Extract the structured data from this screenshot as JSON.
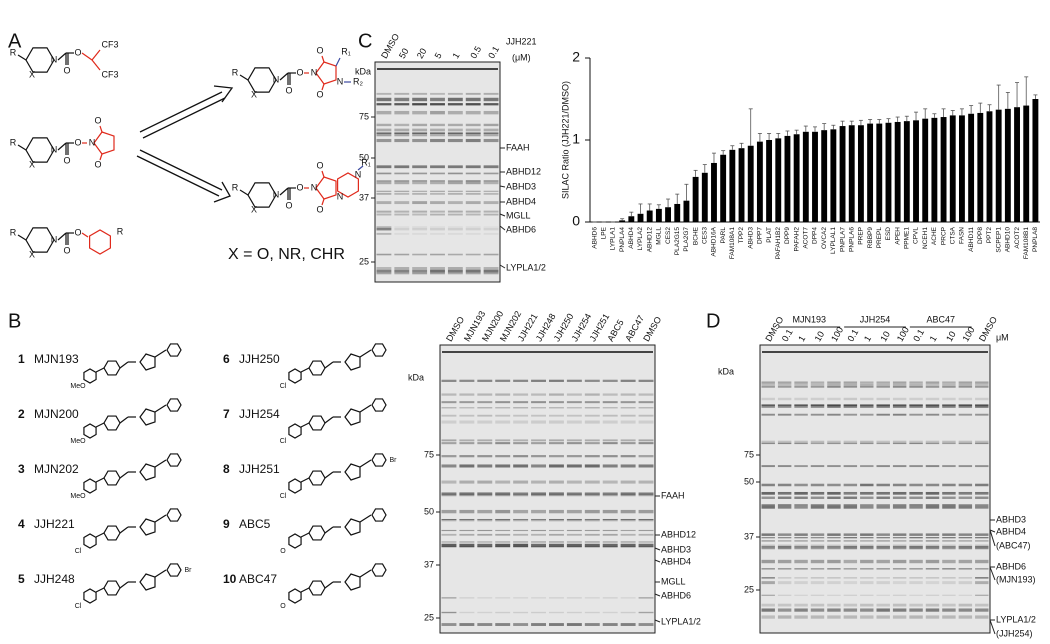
{
  "panel_a": {
    "letter": "A",
    "structures": [
      {
        "labels": [
          "R",
          "X",
          "N",
          "O",
          "O",
          "CF3",
          "CF3"
        ]
      },
      {
        "labels": [
          "R",
          "X",
          "N",
          "O",
          "O",
          "N",
          "O",
          "O"
        ]
      },
      {
        "labels": [
          "R",
          "X",
          "N",
          "O",
          "O",
          "R"
        ]
      },
      {
        "labels": [
          "R",
          "X",
          "N",
          "O",
          "O",
          "N",
          "O",
          "O",
          "N",
          "R₁",
          "R₂"
        ]
      },
      {
        "labels": [
          "R",
          "X",
          "N",
          "O",
          "O",
          "N",
          "O",
          "O",
          "N",
          "N",
          "R₁"
        ]
      }
    ],
    "note": "X = O, NR, CHR"
  },
  "panel_c": {
    "letter": "C",
    "lane_labels": [
      "DMSO",
      50,
      20,
      5,
      1,
      0.5,
      0.1
    ],
    "compound": "JJH221",
    "unit": "(μM)",
    "kda_label": "kDa",
    "markers": [
      75,
      50,
      37,
      25
    ],
    "band_labels": [
      "FAAH",
      "ABHD12",
      "ABHD3",
      "ABHD4",
      "MGLL",
      "ABHD6",
      "LYPLA1/2"
    ]
  },
  "chart_data": {
    "type": "bar",
    "y_label": "SILAC Ratio (JJH221/DMSO)",
    "categories": [
      "ABHD6",
      "LPE",
      "LYPLA1",
      "PNPLA4",
      "ABHD4",
      "LYPLA2",
      "ABHD12",
      "MGLL",
      "CES2",
      "PLA2G15",
      "PLA2G7",
      "BCHE",
      "CES3",
      "ABHD16A",
      "PARL",
      "FAM108A1",
      "TPP2",
      "ABHD3",
      "DPP7",
      "PLAT",
      "PAFAH1B2",
      "DPP9",
      "PAFAH2",
      "ACOT7",
      "DPP4",
      "OVCA2",
      "LYPLAL1",
      "PNPLA7",
      "PNPLA6",
      "PREP",
      "RBBP9",
      "PREPL",
      "ESD",
      "APEH",
      "PPME1",
      "CPVL",
      "NCEH1",
      "ACHE",
      "PRCP",
      "CTSA",
      "FASN",
      "ABHD11",
      "DPP8",
      "PPT2",
      "SCPEP1",
      "ABHD10",
      "ACOT2",
      "FAM108B1",
      "PNPLA8"
    ],
    "values": [
      0,
      0,
      0,
      0.02,
      0.07,
      0.1,
      0.14,
      0.16,
      0.18,
      0.22,
      0.26,
      0.55,
      0.6,
      0.72,
      0.82,
      0.88,
      0.9,
      0.93,
      0.98,
      1.0,
      1.02,
      1.05,
      1.07,
      1.1,
      1.1,
      1.12,
      1.13,
      1.17,
      1.18,
      1.18,
      1.2,
      1.2,
      1.21,
      1.22,
      1.23,
      1.24,
      1.26,
      1.27,
      1.28,
      1.3,
      1.3,
      1.32,
      1.33,
      1.35,
      1.37,
      1.38,
      1.4,
      1.42,
      1.5
    ],
    "errors": [
      0,
      0,
      0,
      0.02,
      0.05,
      0.12,
      0.08,
      0.05,
      0.1,
      0.12,
      0.2,
      0.08,
      0.1,
      0.12,
      0.05,
      0.05,
      0.06,
      0.45,
      0.1,
      0.08,
      0.06,
      0.06,
      0.05,
      0.07,
      0.06,
      0.08,
      0.05,
      0.06,
      0.05,
      0.06,
      0.05,
      0.05,
      0.05,
      0.06,
      0.06,
      0.1,
      0.12,
      0.05,
      0.1,
      0.06,
      0.08,
      0.1,
      0.12,
      0.08,
      0.3,
      0.2,
      0.3,
      0.35,
      0.05
    ],
    "color": "#000000",
    "ylim": [
      0,
      2
    ],
    "yticks": [
      0,
      1,
      2
    ]
  },
  "panel_b": {
    "letter": "B",
    "compounds": [
      {
        "number": 1,
        "name": "MJN193",
        "labels": [
          "MeO"
        ]
      },
      {
        "number": 2,
        "name": "MJN200",
        "labels": [
          "MeO"
        ]
      },
      {
        "number": 3,
        "name": "MJN202",
        "labels": [
          "MeO"
        ]
      },
      {
        "number": 4,
        "name": "JJH221",
        "labels": [
          "Cl"
        ]
      },
      {
        "number": 5,
        "name": "JJH248",
        "labels": [
          "Cl",
          "Br"
        ]
      },
      {
        "number": 6,
        "name": "JJH250",
        "labels": [
          "Cl"
        ]
      },
      {
        "number": 7,
        "name": "JJH254",
        "labels": [
          "Cl"
        ]
      },
      {
        "number": 8,
        "name": "JJH251",
        "labels": [
          "Cl",
          "Br"
        ]
      },
      {
        "number": 9,
        "name": "ABC5",
        "labels": [
          "O"
        ]
      },
      {
        "number": 10,
        "name": "ABC47",
        "labels": [
          "O"
        ]
      }
    ],
    "gel": {
      "lane_labels": [
        "DMSO",
        "MJN193",
        "MJN200",
        "MJN202",
        "JJH221",
        "JJH248",
        "JJH250",
        "JJH254",
        "JJH251",
        "ABC5",
        "ABC47",
        "DMSO"
      ],
      "kda_label": "kDa",
      "markers": [
        75,
        50,
        37,
        25
      ],
      "band_labels": [
        "FAAH",
        "ABHD12",
        "ABHD3",
        "ABHD4",
        "MGLL",
        "ABHD6",
        "LYPLA1/2"
      ]
    }
  },
  "panel_d": {
    "letter": "D",
    "lane_labels": [
      "DMSO",
      0.1,
      1,
      10,
      100,
      0.1,
      1,
      10,
      100,
      0.1,
      1,
      10,
      100,
      "DMSO"
    ],
    "groups": [
      "MJN193",
      "JJH254",
      "ABC47"
    ],
    "unit": "μM",
    "kda_label": "kDa",
    "markers": [
      75,
      50,
      37,
      25
    ],
    "band_labels": [
      "ABHD3",
      "ABHD4",
      "(ABC47)",
      "ABHD6",
      "(MJN193)",
      "LYPLA1/2",
      "(JJH254)"
    ]
  }
}
